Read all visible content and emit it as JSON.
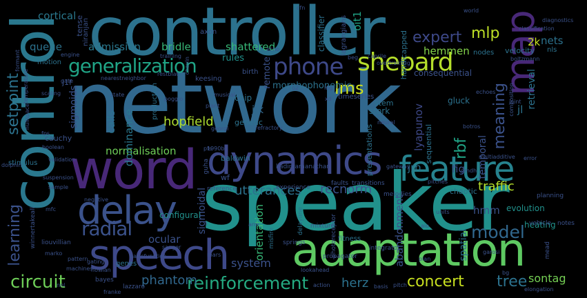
{
  "words": [
    {
      "t": "network",
      "c": "#31688e"
    },
    {
      "t": "speaker",
      "c": "#21918c"
    },
    {
      "t": "controller",
      "c": "#2c728e"
    },
    {
      "t": "control",
      "c": "#2a788e"
    },
    {
      "t": "word",
      "c": "#482878"
    },
    {
      "t": "adaptation",
      "c": "#5ec962"
    },
    {
      "t": "speech",
      "c": "#3e4989"
    },
    {
      "t": "dynamics",
      "c": "#3e4989"
    },
    {
      "t": "feature",
      "c": "#26828e"
    },
    {
      "t": "delay",
      "c": "#3b528b"
    },
    {
      "t": "map",
      "c": "#482878"
    },
    {
      "t": "shepard",
      "c": "#b5de2b"
    },
    {
      "t": "phone",
      "c": "#3e4989"
    },
    {
      "t": "generalization",
      "c": "#20a486"
    },
    {
      "t": "reinforcement",
      "c": "#25ab82"
    },
    {
      "t": "circuit",
      "c": "#6ece58"
    },
    {
      "t": "concert",
      "c": "#c8e020"
    },
    {
      "t": "radial",
      "c": "#3b528b"
    },
    {
      "t": "model",
      "c": "#31688e"
    },
    {
      "t": "meaning",
      "c": "#3b528b"
    },
    {
      "t": "expert",
      "c": "#3e4989"
    },
    {
      "t": "mlp",
      "c": "#bddf26"
    },
    {
      "t": "lms",
      "c": "#d0e11c"
    },
    {
      "t": "rbf",
      "c": "#20a486"
    },
    {
      "t": "hopfield",
      "c": "#addc30"
    },
    {
      "t": "phantom",
      "c": "#31688e"
    },
    {
      "t": "tree",
      "c": "#2c728e"
    },
    {
      "t": "setpoint",
      "c": "#2c728e"
    },
    {
      "t": "learning",
      "c": "#3b528b"
    },
    {
      "t": "normalisation",
      "c": "#6ece58"
    },
    {
      "t": "traffic",
      "c": "#b5de2b"
    },
    {
      "t": "utterances",
      "c": "#2c728e"
    },
    {
      "t": "recnorm",
      "c": "#3b528b"
    },
    {
      "t": "system",
      "c": "#3b528b"
    },
    {
      "t": "herz",
      "c": "#2c728e"
    },
    {
      "t": "sontag",
      "c": "#75d054"
    },
    {
      "t": "cortical",
      "c": "#2a788e"
    },
    {
      "t": "admission",
      "c": "#2a788e"
    },
    {
      "t": "bridle",
      "c": "#37b878"
    },
    {
      "t": "shattered",
      "c": "#37b878"
    },
    {
      "t": "hemmen",
      "c": "#84d44b"
    },
    {
      "t": "nets",
      "c": "#2c728e"
    },
    {
      "t": "2k",
      "c": "#c8e020"
    },
    {
      "t": "queue",
      "c": "#2c728e"
    },
    {
      "t": "ocular",
      "c": "#3b528b"
    },
    {
      "t": "hmm",
      "c": "#3b528b"
    },
    {
      "t": "jlk",
      "c": "#31688e"
    },
    {
      "t": "jl",
      "c": "#2c728e"
    },
    {
      "t": "jrn",
      "c": "#2c728e"
    },
    {
      "t": "rules",
      "c": "#21918c"
    },
    {
      "t": "oit1",
      "c": "#20a486"
    },
    {
      "t": "fig",
      "c": "#3b528b"
    },
    {
      "t": "calls",
      "c": "#2c728e"
    },
    {
      "t": "dominance",
      "c": "#2a788e"
    },
    {
      "t": "lyapunov",
      "c": "#3e4989"
    },
    {
      "t": "orientation",
      "c": "#37b878"
    },
    {
      "t": "abandonment",
      "c": "#3b528b"
    },
    {
      "t": "sigmoids",
      "c": "#3b528b"
    },
    {
      "t": "sigmoidal",
      "c": "#3b528b"
    },
    {
      "t": "spatial",
      "c": "#2c728e"
    },
    {
      "t": "temporal",
      "c": "#3b528b"
    },
    {
      "t": "retrieval",
      "c": "#2c728e"
    },
    {
      "t": "evolution",
      "c": "#21918c"
    },
    {
      "t": "heating",
      "c": "#21918c"
    },
    {
      "t": "configural",
      "c": "#21918c"
    },
    {
      "t": "remote",
      "c": "#3b528b"
    },
    {
      "t": "morphophonemic",
      "c": "#2c728e"
    },
    {
      "t": "consequential",
      "c": "#3b528b"
    },
    {
      "t": "chip",
      "c": "#2c728e"
    },
    {
      "t": "genetic",
      "c": "#2c728e"
    },
    {
      "t": "stork",
      "c": "#2c728e"
    },
    {
      "t": "stem",
      "c": "#2c728e"
    },
    {
      "t": "gluck",
      "c": "#2c728e"
    },
    {
      "t": "velocity",
      "c": "#2c728e"
    },
    {
      "t": "nls",
      "c": "#2c728e"
    },
    {
      "t": "nodes",
      "c": "#2c728e"
    },
    {
      "t": "cauchy",
      "c": "#3b528b"
    },
    {
      "t": "baldwin",
      "c": "#2c728e"
    },
    {
      "t": "motion",
      "c": "#2c728e"
    },
    {
      "t": "axon",
      "c": "#3b528b"
    },
    {
      "t": "birth",
      "c": "#3b528b"
    },
    {
      "t": "classifier",
      "c": "#2c728e"
    },
    {
      "t": "lagrangians",
      "c": "#3b528b"
    },
    {
      "t": "handicapped",
      "c": "#2c728e"
    },
    {
      "t": "presentations",
      "c": "#2c728e"
    },
    {
      "t": "sequential",
      "c": "#2c728e"
    },
    {
      "t": "chaotic",
      "c": "#2c728e"
    },
    {
      "t": "tense",
      "c": "#3b528b"
    },
    {
      "t": "niranjan",
      "c": "#3b528b"
    },
    {
      "t": "j1f",
      "c": "#3b528b"
    },
    {
      "t": "wf",
      "c": "#3b528b"
    },
    {
      "t": "genes",
      "c": "#2c728e"
    },
    {
      "t": "fitness",
      "c": "#2c728e"
    },
    {
      "t": "production",
      "c": "#2c728e"
    },
    {
      "t": "timeseries",
      "c": "#3b528b"
    },
    {
      "t": "keesing",
      "c": "#3b528b"
    },
    {
      "t": "formant",
      "c": "#3b528b"
    },
    {
      "t": "temperature",
      "c": "#3b528b"
    },
    {
      "t": "stimulus",
      "c": "#2c728e"
    },
    {
      "t": "winnertakeall",
      "c": "#3b528b"
    },
    {
      "t": "liouvillian",
      "c": "#3b528b"
    },
    {
      "t": "delayline",
      "c": "#2c728e"
    },
    {
      "t": "misfire",
      "c": "#2c728e"
    },
    {
      "t": "photoreceptor",
      "c": "#3b528b"
    },
    {
      "t": "lazzaro",
      "c": "#3b528b"
    },
    {
      "t": "bayes",
      "c": "#3b528b"
    },
    {
      "t": "mead",
      "c": "#3b528b"
    },
    {
      "t": "planning",
      "c": "#3b528b"
    },
    {
      "t": "notes",
      "c": "#3b528b"
    },
    {
      "t": "vehicle",
      "c": "#3b528b"
    },
    {
      "t": "integrator",
      "c": "#3b528b"
    },
    {
      "t": "propagator",
      "c": "#3b528b"
    },
    {
      "t": "springs",
      "c": "#3b528b"
    },
    {
      "t": "mixture",
      "c": "#3b528b"
    },
    {
      "t": "faults",
      "c": "#3b528b"
    },
    {
      "t": "transitions",
      "c": "#3b528b"
    },
    {
      "t": "melodies",
      "c": "#3b528b"
    },
    {
      "t": "experience",
      "c": "#3b528b"
    },
    {
      "t": "reference",
      "c": "#3b528b"
    },
    {
      "t": "guha",
      "c": "#3b528b"
    },
    {
      "t": "kadirkamanathan",
      "c": "#3b528b"
    },
    {
      "t": "refractory",
      "c": "#3b528b"
    },
    {
      "t": "georgi",
      "c": "#3b528b"
    },
    {
      "t": "boolean",
      "c": "#3b528b"
    },
    {
      "t": "validation",
      "c": "#3b528b"
    },
    {
      "t": "1990b",
      "c": "#3b528b"
    },
    {
      "t": "gateway",
      "c": "#3b528b"
    },
    {
      "t": "multiadditive",
      "c": "#3b528b"
    },
    {
      "t": "error",
      "c": "#3b528b"
    },
    {
      "t": "gmdh",
      "c": "#3b528b"
    },
    {
      "t": "pitches",
      "c": "#3b528b"
    },
    {
      "t": "suspension",
      "c": "#3b528b"
    },
    {
      "t": "sample",
      "c": "#3b528b"
    },
    {
      "t": "mfc",
      "c": "#3b528b"
    },
    {
      "t": "marko",
      "c": "#3b528b"
    },
    {
      "t": "machines",
      "c": "#3b528b"
    },
    {
      "t": "gating",
      "c": "#3b528b"
    },
    {
      "t": "nowlan",
      "c": "#3b528b"
    },
    {
      "t": "franke",
      "c": "#3b528b"
    },
    {
      "t": "lookahead",
      "c": "#3b528b"
    },
    {
      "t": "action",
      "c": "#3b528b"
    },
    {
      "t": "basis",
      "c": "#3b528b"
    },
    {
      "t": "pitch",
      "c": "#3b528b"
    },
    {
      "t": "plan",
      "c": "#3b528b"
    },
    {
      "t": "units",
      "c": "#3b528b"
    },
    {
      "t": "garosi",
      "c": "#3b528b"
    },
    {
      "t": "elongation",
      "c": "#3b528b"
    },
    {
      "t": "sanger",
      "c": "#3b528b"
    },
    {
      "t": "pattern",
      "c": "#3b528b"
    },
    {
      "t": "basisfunction",
      "c": "#3b528b"
    },
    {
      "t": "mars",
      "c": "#3b528b"
    },
    {
      "t": "negative",
      "c": "#3b528b"
    },
    {
      "t": "classification",
      "c": "#3b528b"
    },
    {
      "t": "diagnostics",
      "c": "#3b528b"
    },
    {
      "t": "boltzmann",
      "c": "#3b528b"
    },
    {
      "t": "caprile",
      "c": "#3b528b"
    },
    {
      "t": "overtraining",
      "c": "#3b528b"
    },
    {
      "t": "training",
      "c": "#3b528b"
    },
    {
      "t": "engine",
      "c": "#3b528b"
    },
    {
      "t": "gate",
      "c": "#3b528b"
    },
    {
      "t": "nearestneighbor",
      "c": "#3b528b"
    },
    {
      "t": "restblat",
      "c": "#3b528b"
    },
    {
      "t": "scaling",
      "c": "#3b528b"
    },
    {
      "t": "musical",
      "c": "#3b528b"
    },
    {
      "t": "poggio",
      "c": "#3b528b"
    },
    {
      "t": "plant",
      "c": "#3b528b"
    },
    {
      "t": "echoes",
      "c": "#3b528b"
    },
    {
      "t": "composition",
      "c": "#3b528b"
    },
    {
      "t": "joint",
      "c": "#3b528b"
    },
    {
      "t": "neural",
      "c": "#3b528b"
    },
    {
      "t": "nullspace",
      "c": "#3b528b"
    },
    {
      "t": "echo",
      "c": "#3b528b"
    },
    {
      "t": "world",
      "c": "#3b528b"
    },
    {
      "t": "cfn",
      "c": "#3b528b"
    },
    {
      "t": "lng",
      "c": "#3b528b"
    },
    {
      "t": "chavin",
      "c": "#3b528b"
    },
    {
      "t": "dolphin",
      "c": "#3b528b"
    },
    {
      "t": "fps",
      "c": "#3b528b"
    },
    {
      "t": "state",
      "c": "#3b528b"
    },
    {
      "t": "botros",
      "c": "#3b528b"
    },
    {
      "t": "o2",
      "c": "#3b528b"
    },
    {
      "t": "xd",
      "c": "#3b528b"
    },
    {
      "t": "beg",
      "c": "#3b528b"
    },
    {
      "t": "nnl",
      "c": "#3b528b"
    },
    {
      "t": "pfs",
      "c": "#3b528b"
    },
    {
      "t": "bg",
      "c": "#3b528b"
    },
    {
      "t": "aio",
      "c": "#3b528b"
    },
    {
      "t": "arm",
      "c": "#3b528b"
    }
  ]
}
